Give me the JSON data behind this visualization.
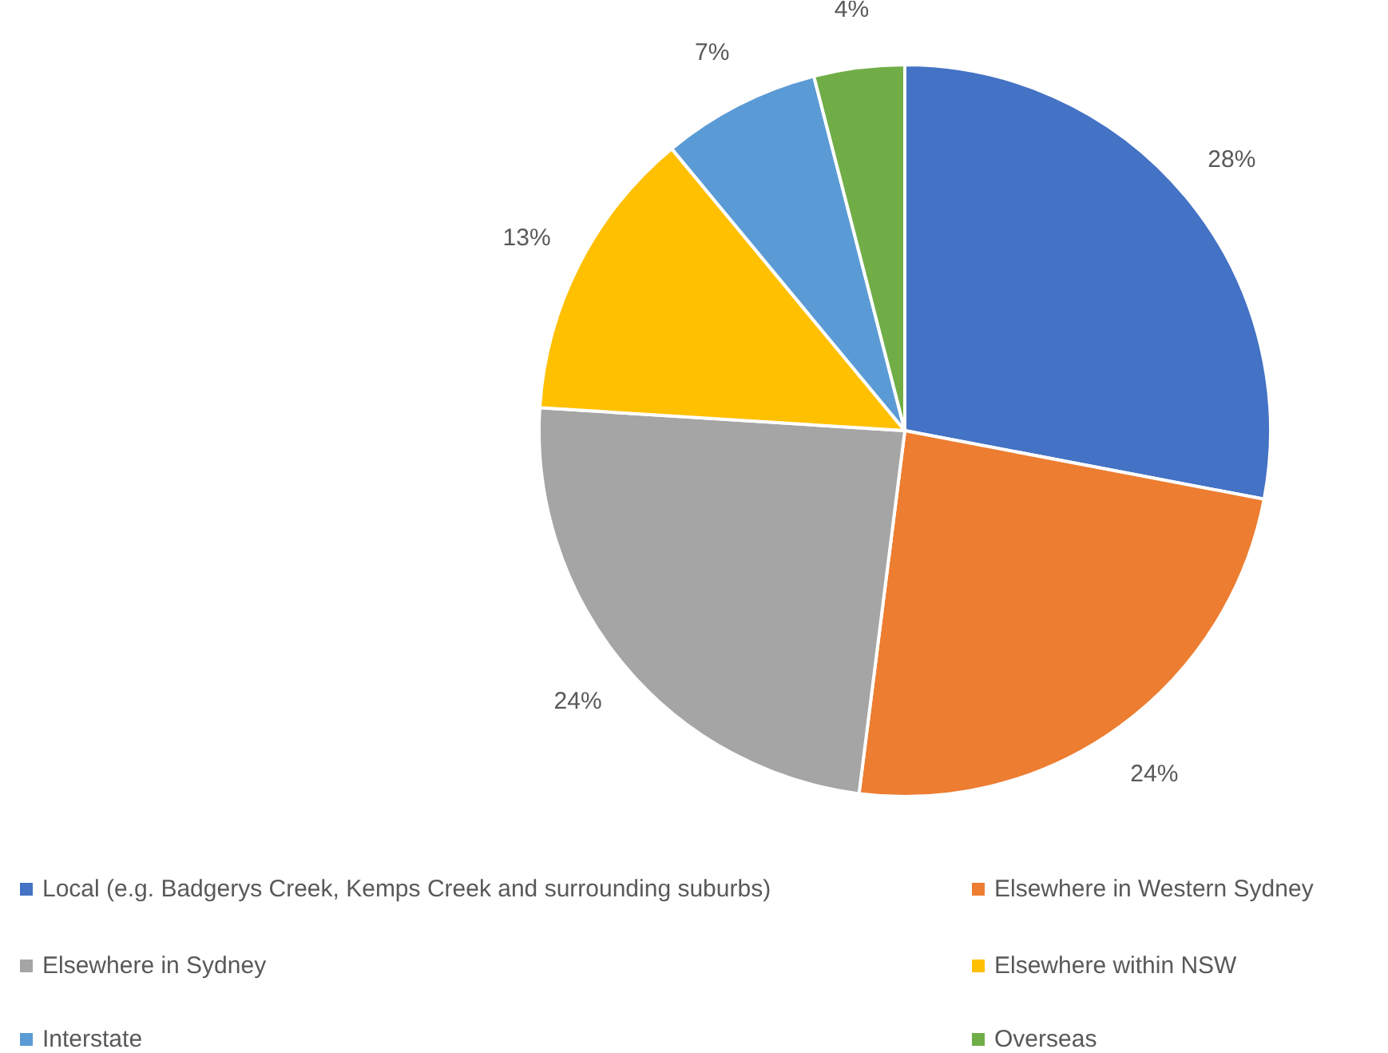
{
  "chart_data": {
    "type": "pie",
    "categories": [
      "Local (e.g. Badgerys Creek, Kemps Creek and surrounding suburbs)",
      "Elsewhere in Western Sydney",
      "Elsewhere in Sydney",
      "Elsewhere within NSW",
      "Interstate",
      "Overseas"
    ],
    "values": [
      28,
      24,
      24,
      13,
      7,
      4
    ],
    "colors": [
      "#4472c4",
      "#ed7d31",
      "#a5a5a5",
      "#ffc000",
      "#5b9bd5",
      "#70ad47"
    ],
    "value_labels": [
      "28%",
      "24%",
      "24%",
      "13%",
      "7%",
      "4%"
    ],
    "legend": "bottom"
  }
}
